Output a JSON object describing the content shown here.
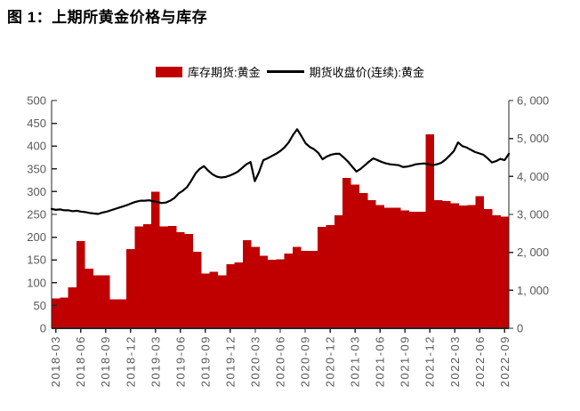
{
  "title": "图 1：上期所黄金价格与库存",
  "legend": [
    {
      "label": "库存期货:黄金",
      "type": "bar",
      "color": "#C00000"
    },
    {
      "label": "期货收盘价(连续):黄金",
      "type": "line",
      "color": "#000000"
    }
  ],
  "chart_data": {
    "type": "bar+line combo, dual axis",
    "title": "图 1：上期所黄金价格与库存",
    "grid": "off",
    "legend_position": "top-center",
    "x_tick_labels": [
      "2018-03",
      "2018-06",
      "2018-09",
      "2018-12",
      "2019-03",
      "2019-06",
      "2019-09",
      "2019-12",
      "2020-03",
      "2020-06",
      "2020-09",
      "2020-12",
      "2021-03",
      "2021-06",
      "2021-09",
      "2021-12",
      "2022-03",
      "2022-06",
      "2022-09"
    ],
    "months": [
      "2018-03",
      "2018-04",
      "2018-05",
      "2018-06",
      "2018-07",
      "2018-08",
      "2018-09",
      "2018-10",
      "2018-11",
      "2018-12",
      "2019-01",
      "2019-02",
      "2019-03",
      "2019-04",
      "2019-05",
      "2019-06",
      "2019-07",
      "2019-08",
      "2019-09",
      "2019-10",
      "2019-11",
      "2019-12",
      "2020-01",
      "2020-02",
      "2020-03",
      "2020-04",
      "2020-05",
      "2020-06",
      "2020-07",
      "2020-08",
      "2020-09",
      "2020-10",
      "2020-11",
      "2020-12",
      "2021-01",
      "2021-02",
      "2021-03",
      "2021-04",
      "2021-05",
      "2021-06",
      "2021-07",
      "2021-08",
      "2021-09",
      "2021-10",
      "2021-11",
      "2021-12",
      "2022-01",
      "2022-02",
      "2022-03",
      "2022-04",
      "2022-05",
      "2022-06",
      "2022-07",
      "2022-08",
      "2022-09"
    ],
    "left_axis": {
      "min": 0,
      "max": 500,
      "step": 50,
      "ticks": [
        "0",
        "50",
        "100",
        "150",
        "200",
        "250",
        "300",
        "350",
        "400",
        "450",
        "500"
      ],
      "series": "期货收盘价(连续):黄金"
    },
    "right_axis": {
      "min": 0,
      "max": 6000,
      "step": 1000,
      "ticks": [
        "0",
        "1, 000",
        "2, 000",
        "3, 000",
        "4, 000",
        "5, 000",
        "6, 000"
      ],
      "series": "库存期货:黄金"
    },
    "series": [
      {
        "name": "库存期货:黄金",
        "type": "bar",
        "axis": "right",
        "color": "#C00000",
        "frequency": "monthly",
        "values": [
          780,
          810,
          1080,
          2300,
          1570,
          1390,
          1390,
          760,
          760,
          2090,
          2680,
          2740,
          3600,
          2680,
          2690,
          2530,
          2490,
          2020,
          1440,
          1490,
          1400,
          1690,
          1740,
          2320,
          2150,
          1910,
          1810,
          1820,
          1970,
          2150,
          2040,
          2040,
          2670,
          2720,
          2980,
          3960,
          3790,
          3560,
          3370,
          3250,
          3180,
          3180,
          3110,
          3070,
          3070,
          5110,
          3370,
          3350,
          3290,
          3230,
          3250,
          3480,
          3140,
          2980,
          2940
        ]
      },
      {
        "name": "期货收盘价(连续):黄金",
        "type": "line",
        "axis": "left",
        "color": "#000000",
        "frequency": "semi-monthly",
        "values": [
          262,
          260,
          261,
          259,
          259,
          257,
          258,
          256,
          255,
          253,
          252,
          251,
          254,
          256,
          259,
          262,
          265,
          268,
          271,
          275,
          278,
          280,
          280,
          281,
          279,
          277,
          275,
          276,
          280,
          286,
          296,
          302,
          310,
          324,
          340,
          350,
          356,
          346,
          338,
          333,
          331,
          332,
          335,
          339,
          344,
          352,
          360,
          365,
          323,
          343,
          369,
          373,
          378,
          383,
          389,
          397,
          408,
          424,
          437,
          422,
          406,
          398,
          393,
          385,
          371,
          377,
          381,
          383,
          383,
          375,
          366,
          355,
          344,
          350,
          358,
          366,
          373,
          369,
          365,
          362,
          360,
          359,
          358,
          354,
          355,
          357,
          360,
          361,
          362,
          360,
          358,
          360,
          363,
          370,
          379,
          389,
          408,
          400,
          397,
          392,
          387,
          384,
          381,
          373,
          364,
          367,
          372,
          369,
          383
        ]
      }
    ],
    "style": {
      "axis_line_color": "#262626",
      "tick_label_color": "#595959",
      "bar_color": "#C00000",
      "line_color": "#000000"
    }
  }
}
